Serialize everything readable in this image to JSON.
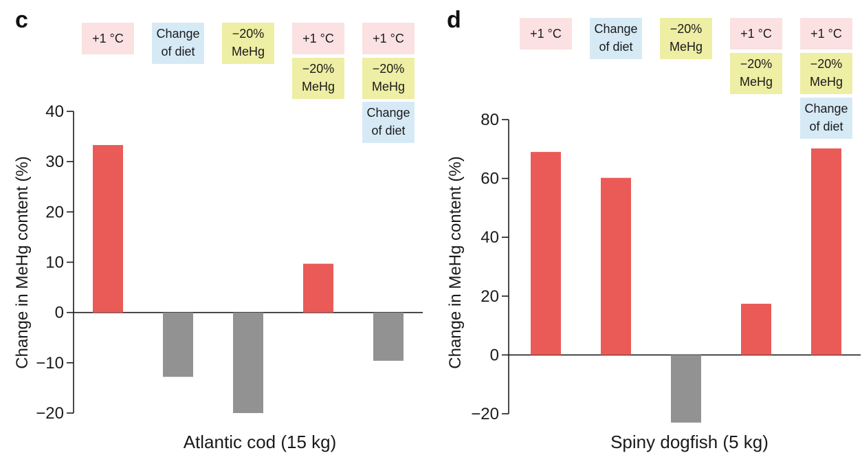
{
  "colors": {
    "increase": "#ea5b57",
    "decrease": "#929292",
    "warming_chip": "#fbe1e1",
    "diet_chip": "#d6eaf6",
    "mehg_chip": "#eeeea4"
  },
  "chart_data": [
    {
      "type": "bar",
      "panel": "c",
      "xlabel": "Atlantic cod (15 kg)",
      "ylabel": "Change in MeHg content (%)",
      "ylim": [
        -20,
        40
      ],
      "yticks": [
        -20,
        -10,
        0,
        10,
        20,
        30,
        40
      ],
      "categories": [
        "+1 °C",
        "Change of diet",
        "−20% MeHg",
        "+1 °C, −20% MeHg",
        "+1 °C, −20% MeHg, Change of diet"
      ],
      "values": [
        33.3,
        -12.8,
        -20.0,
        9.7,
        -9.6
      ],
      "scenarios": [
        [
          {
            "text": [
              "+1 °C"
            ],
            "kind": "warming"
          }
        ],
        [
          {
            "text": [
              "Change",
              "of diet"
            ],
            "kind": "diet"
          }
        ],
        [
          {
            "text": [
              "−20%",
              "MeHg"
            ],
            "kind": "mehg"
          }
        ],
        [
          {
            "text": [
              "+1 °C"
            ],
            "kind": "warming"
          },
          {
            "text": [
              "−20%",
              "MeHg"
            ],
            "kind": "mehg"
          }
        ],
        [
          {
            "text": [
              "+1 °C"
            ],
            "kind": "warming"
          },
          {
            "text": [
              "−20%",
              "MeHg"
            ],
            "kind": "mehg"
          },
          {
            "text": [
              "Change",
              "of diet"
            ],
            "kind": "diet"
          }
        ]
      ]
    },
    {
      "type": "bar",
      "panel": "d",
      "xlabel": "Spiny dogfish (5 kg)",
      "ylabel": "Change in MeHg content (%)",
      "ylim": [
        -20,
        80
      ],
      "yticks": [
        -20,
        0,
        20,
        40,
        60,
        80
      ],
      "categories": [
        "+1 °C",
        "Change of diet",
        "−20% MeHg",
        "+1 °C, −20% MeHg",
        "+1 °C, −20% MeHg, Change of diet"
      ],
      "values": [
        69.0,
        60.2,
        -23.0,
        17.4,
        70.2
      ],
      "scenarios": [
        [
          {
            "text": [
              "+1 °C"
            ],
            "kind": "warming"
          }
        ],
        [
          {
            "text": [
              "Change",
              "of diet"
            ],
            "kind": "diet"
          }
        ],
        [
          {
            "text": [
              "−20%",
              "MeHg"
            ],
            "kind": "mehg"
          }
        ],
        [
          {
            "text": [
              "+1 °C"
            ],
            "kind": "warming"
          },
          {
            "text": [
              "−20%",
              "MeHg"
            ],
            "kind": "mehg"
          }
        ],
        [
          {
            "text": [
              "+1 °C"
            ],
            "kind": "warming"
          },
          {
            "text": [
              "−20%",
              "MeHg"
            ],
            "kind": "mehg"
          },
          {
            "text": [
              "Change",
              "of diet"
            ],
            "kind": "diet"
          }
        ]
      ]
    }
  ]
}
